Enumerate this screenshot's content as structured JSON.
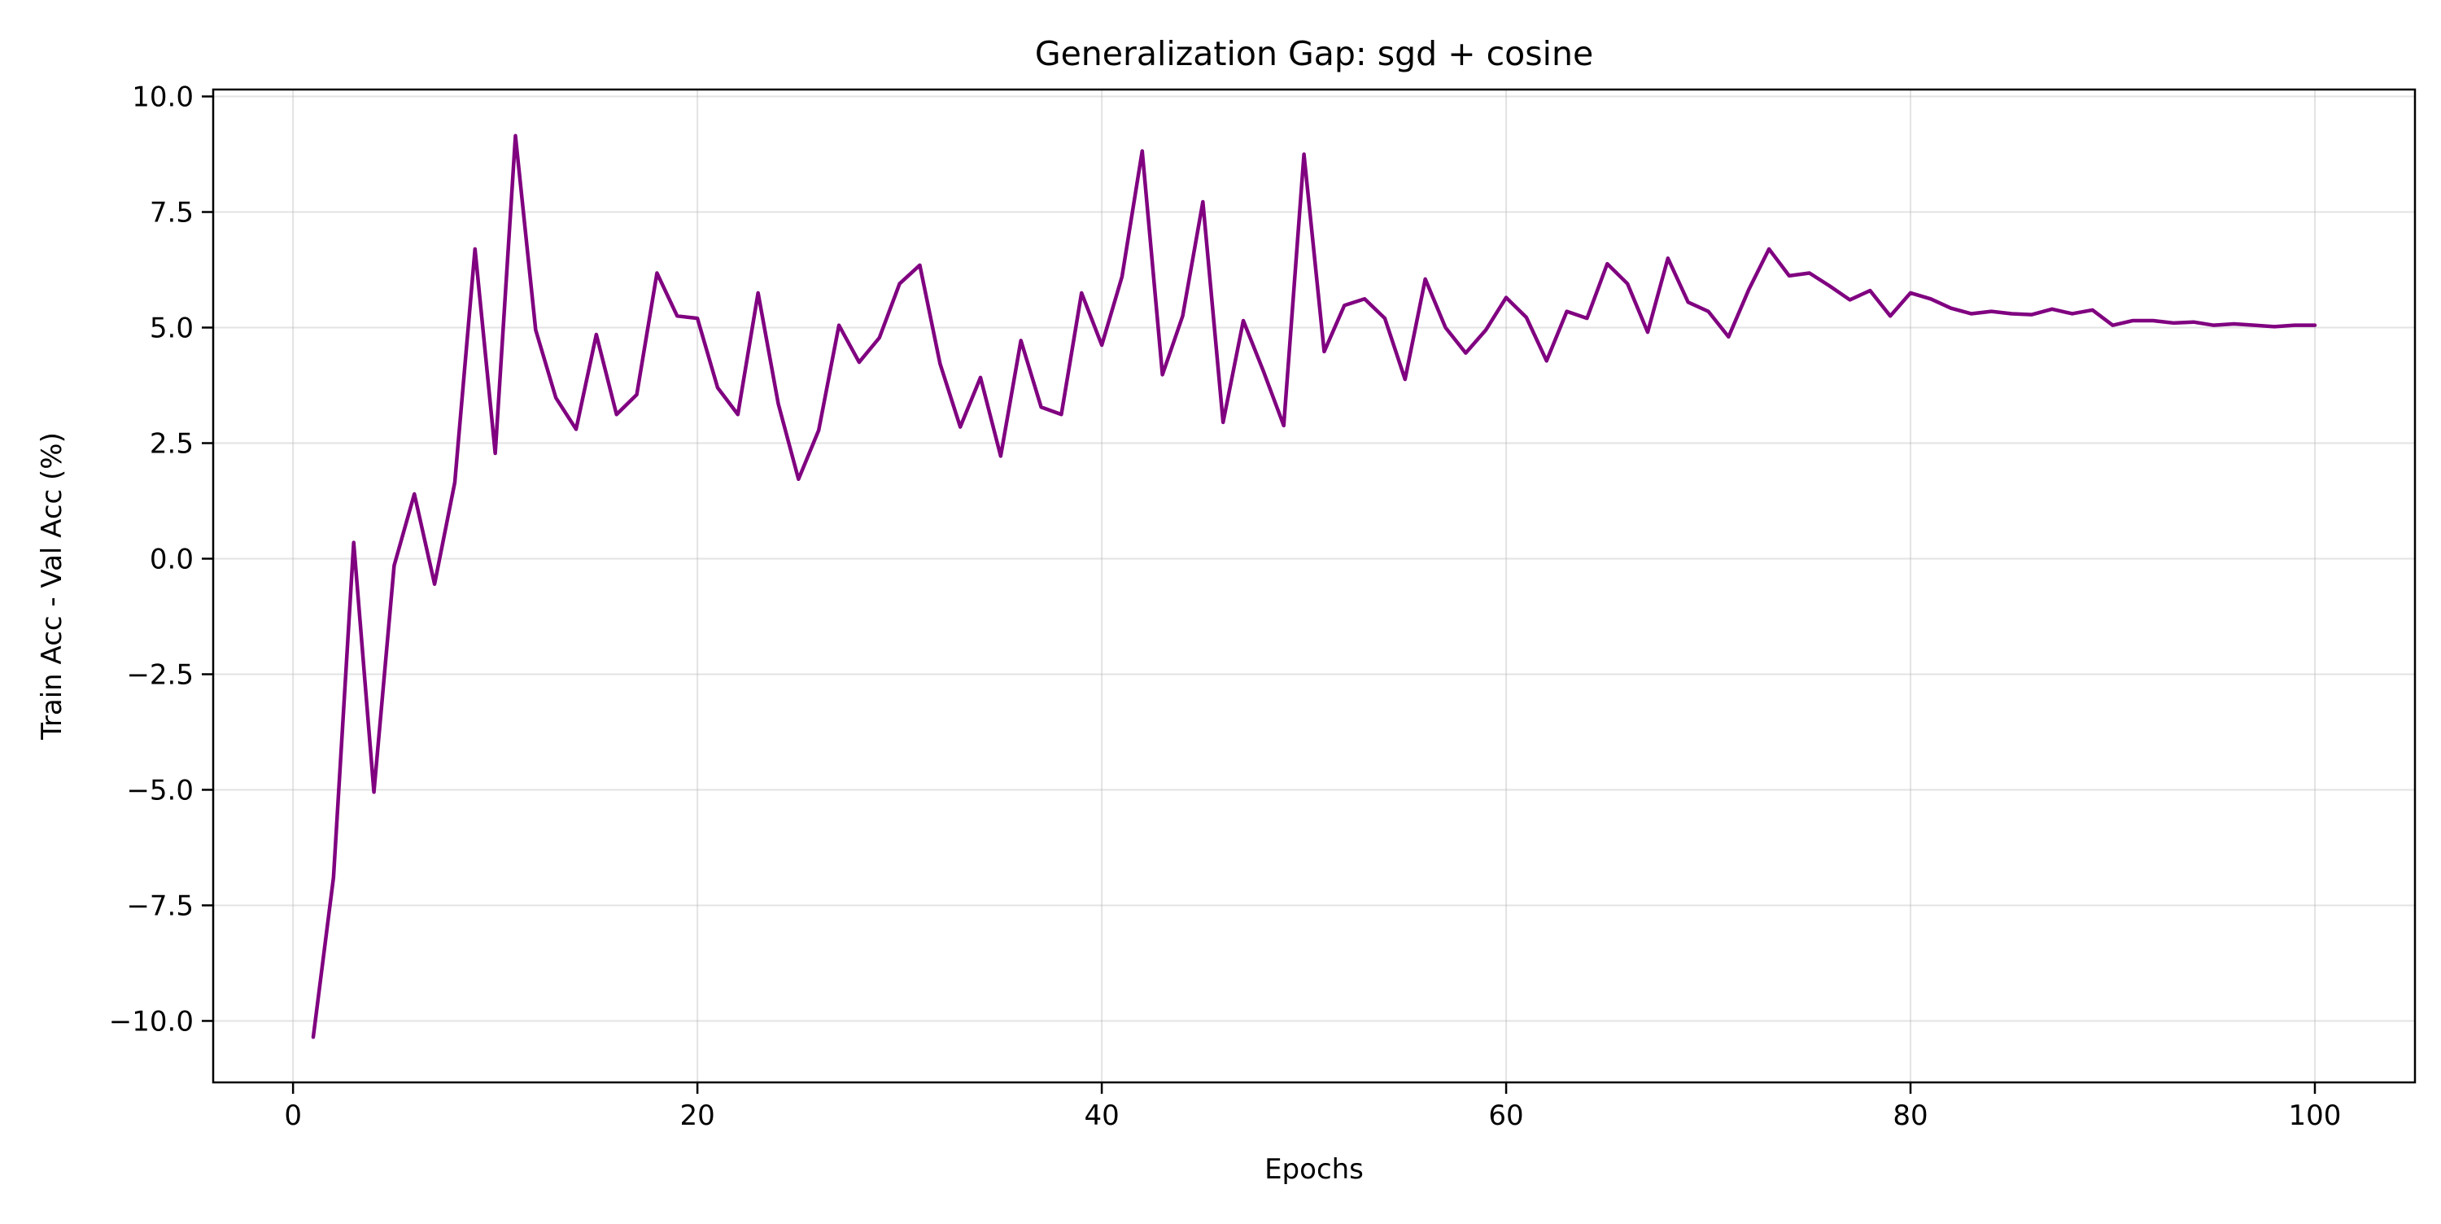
{
  "chart_data": {
    "type": "line",
    "title": "Generalization Gap: sgd + cosine",
    "xlabel": "Epochs",
    "ylabel": "Train Acc - Val Acc (%)",
    "xlim": [
      -3.95,
      104.95
    ],
    "ylim": [
      -11.33,
      10.15
    ],
    "xticks": [
      0,
      20,
      40,
      60,
      80,
      100
    ],
    "xtick_labels": [
      "0",
      "20",
      "40",
      "60",
      "80",
      "100"
    ],
    "yticks": [
      -10.0,
      -7.5,
      -5.0,
      -2.5,
      0.0,
      2.5,
      5.0,
      7.5,
      10.0
    ],
    "ytick_labels": [
      "−10.0",
      "−7.5",
      "−5.0",
      "−2.5",
      "0.0",
      "2.5",
      "5.0",
      "7.5",
      "10.0"
    ],
    "grid": true,
    "series": [
      {
        "color": "#800080",
        "x": [
          1,
          2,
          3,
          4,
          5,
          6,
          7,
          8,
          9,
          10,
          11,
          12,
          13,
          14,
          15,
          16,
          17,
          18,
          19,
          20,
          21,
          22,
          23,
          24,
          25,
          26,
          27,
          28,
          29,
          30,
          31,
          32,
          33,
          34,
          35,
          36,
          37,
          38,
          39,
          40,
          41,
          42,
          43,
          44,
          45,
          46,
          47,
          48,
          49,
          50,
          51,
          52,
          53,
          54,
          55,
          56,
          57,
          58,
          59,
          60,
          61,
          62,
          63,
          64,
          65,
          66,
          67,
          68,
          69,
          70,
          71,
          72,
          73,
          74,
          75,
          76,
          77,
          78,
          79,
          80,
          81,
          82,
          83,
          84,
          85,
          86,
          87,
          88,
          89,
          90,
          91,
          92,
          93,
          94,
          95,
          96,
          97,
          98,
          99,
          100
        ],
        "y": [
          -10.35,
          -6.9,
          0.35,
          -5.05,
          -0.15,
          1.4,
          -0.55,
          1.65,
          6.7,
          2.28,
          9.15,
          4.95,
          3.48,
          2.8,
          4.85,
          3.12,
          3.55,
          6.18,
          5.25,
          5.2,
          3.7,
          3.12,
          5.75,
          3.35,
          1.72,
          2.78,
          5.05,
          4.25,
          4.78,
          5.95,
          6.35,
          4.22,
          2.85,
          3.92,
          2.22,
          4.72,
          3.28,
          3.12,
          5.75,
          4.62,
          6.1,
          8.82,
          3.98,
          5.25,
          7.72,
          2.95,
          5.15,
          4.05,
          2.88,
          8.75,
          4.48,
          5.48,
          5.62,
          5.2,
          3.88,
          6.05,
          5.0,
          4.45,
          4.95,
          5.65,
          5.22,
          4.28,
          5.35,
          5.2,
          6.38,
          5.95,
          4.9,
          6.5,
          5.55,
          5.35,
          4.8,
          5.82,
          6.7,
          6.12,
          6.18,
          5.9,
          5.6,
          5.8,
          5.25,
          5.75,
          5.62,
          5.42,
          5.3,
          5.35,
          5.3,
          5.28,
          5.4,
          5.3,
          5.38,
          5.05,
          5.15,
          5.15,
          5.1,
          5.12,
          5.05,
          5.08,
          5.05,
          5.02,
          5.05,
          5.05
        ]
      }
    ]
  }
}
